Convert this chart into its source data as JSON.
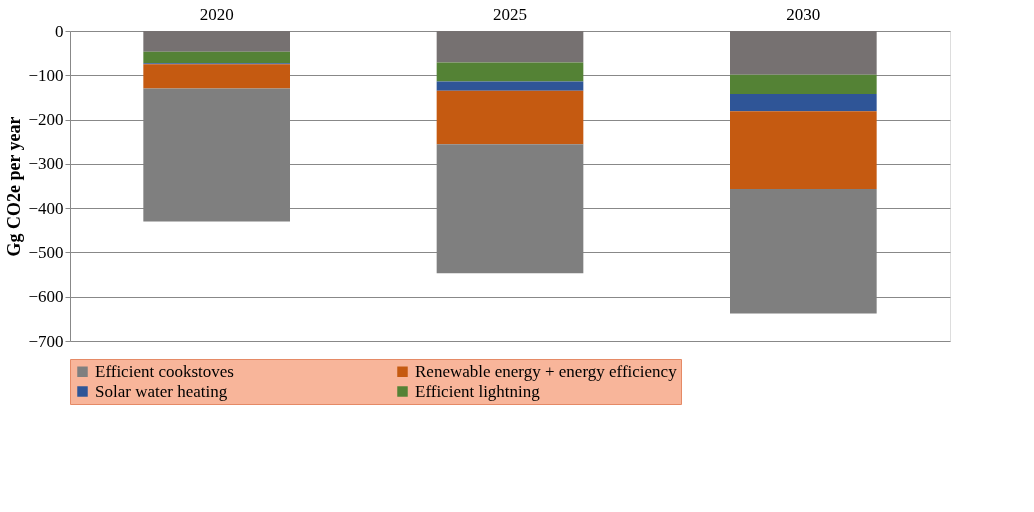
{
  "chart_data": {
    "type": "bar",
    "stacked": true,
    "ylabel": "Gg CO2e per year",
    "categories": [
      "2020",
      "2025",
      "2030"
    ],
    "series": [
      {
        "color": "#767171",
        "values": [
          -47,
          -71,
          -99
        ]
      },
      {
        "name": "Efficient lightning",
        "color": "#548235",
        "values": [
          -26,
          -43,
          -43
        ]
      },
      {
        "name": "Solar water heating",
        "color": "#2f5597",
        "values": [
          -2,
          -21,
          -39
        ]
      },
      {
        "name": "Renewable energy + energy efficiency",
        "color": "#c55a11",
        "values": [
          -55,
          -121,
          -176
        ]
      },
      {
        "name": "Efficient cookstoves",
        "color": "#7f7f7f",
        "values": [
          -300,
          -291,
          -281
        ]
      }
    ],
    "ylim": [
      -700,
      0
    ],
    "yticks": [
      0,
      -100,
      -200,
      -300,
      -400,
      -500,
      -600,
      -700
    ],
    "grid": "y",
    "legend": "bottom"
  }
}
